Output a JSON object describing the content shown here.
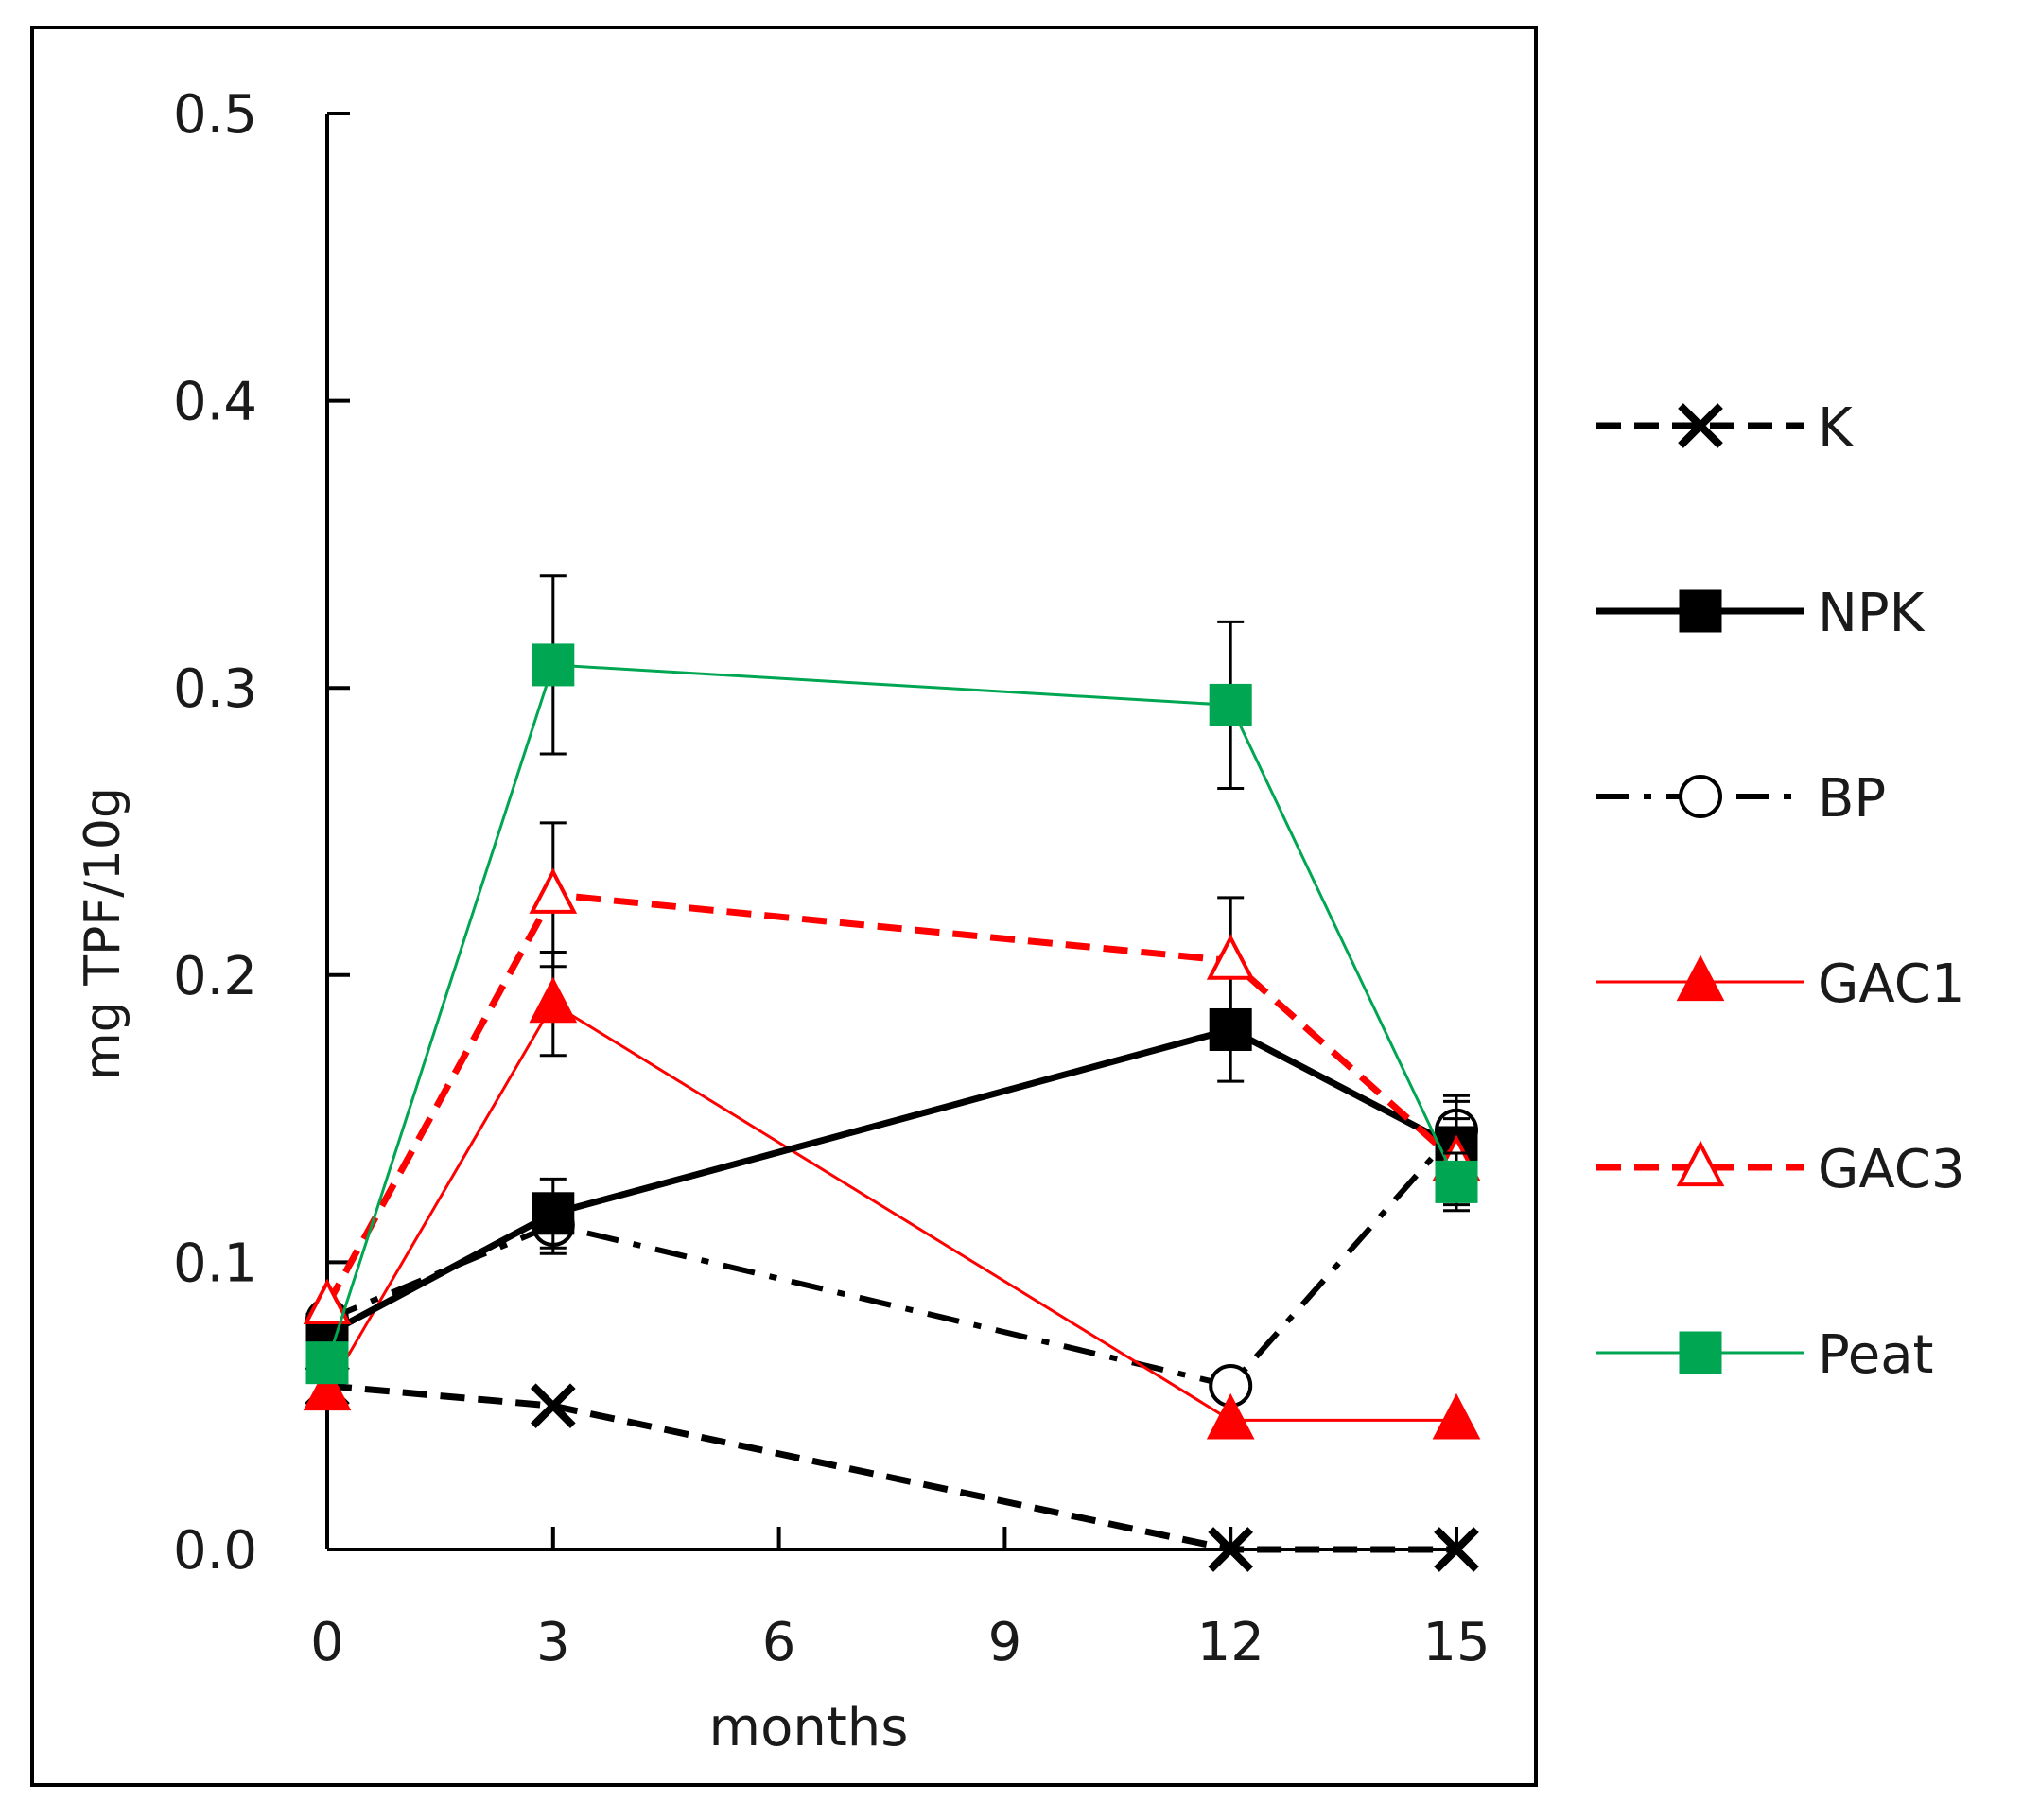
{
  "chart_data": {
    "type": "line",
    "title": "",
    "xlabel": "months",
    "ylabel": "mg TPF/10g",
    "xlim": [
      0,
      15
    ],
    "ylim": [
      0,
      0.5
    ],
    "xticks": [
      0,
      3,
      6,
      9,
      12,
      15
    ],
    "xtick_labels": [
      "0",
      "3",
      "6",
      "9",
      "12",
      "15"
    ],
    "yticks": [
      0,
      0.1,
      0.2,
      0.3,
      0.4,
      0.5
    ],
    "ytick_labels": [
      "0.0",
      "0.1",
      "0.2",
      "0.3",
      "0.4",
      "0.5"
    ],
    "grid": false,
    "legend_position": "right",
    "series": [
      {
        "name": "K",
        "color": "#000000",
        "dash": "dashed",
        "marker": "x",
        "filled": true,
        "x": [
          0,
          3,
          12,
          15
        ],
        "y": [
          0.057,
          0.05,
          0.0,
          0.0
        ],
        "err": [
          0,
          0,
          0,
          0
        ]
      },
      {
        "name": "NPK",
        "color": "#000000",
        "dash": "solid",
        "marker": "square",
        "filled": true,
        "x": [
          0,
          3,
          12,
          15
        ],
        "y": [
          0.075,
          0.117,
          0.181,
          0.14
        ],
        "err": [
          0,
          0.012,
          0.018,
          0.018
        ]
      },
      {
        "name": "BP",
        "color": "#000000",
        "dash": "dashdot",
        "marker": "circle",
        "filled": false,
        "x": [
          0,
          3,
          12,
          15
        ],
        "y": [
          0.08,
          0.113,
          0.057,
          0.146
        ],
        "err": [
          0,
          0.01,
          0,
          0.01
        ]
      },
      {
        "name": "GAC1",
        "color": "#ff0000",
        "dash": "solid",
        "marker": "triangle",
        "filled": true,
        "x": [
          0,
          3,
          12,
          15
        ],
        "y": [
          0.055,
          0.19,
          0.045,
          0.045
        ],
        "err": [
          0,
          0.018,
          0,
          0
        ]
      },
      {
        "name": "GAC3",
        "color": "#ff0000",
        "dash": "dashed",
        "marker": "triangle",
        "filled": false,
        "x": [
          0,
          3,
          12,
          15
        ],
        "y": [
          0.085,
          0.228,
          0.205,
          0.135
        ],
        "err": [
          0,
          0.025,
          0.022,
          0.015
        ]
      },
      {
        "name": "Peat",
        "color": "#00a651",
        "dash": "solid",
        "marker": "square",
        "filled": true,
        "x": [
          0,
          3,
          12,
          15
        ],
        "y": [
          0.065,
          0.308,
          0.294,
          0.128
        ],
        "err": [
          0,
          0.031,
          0.029,
          0.01
        ]
      }
    ]
  }
}
